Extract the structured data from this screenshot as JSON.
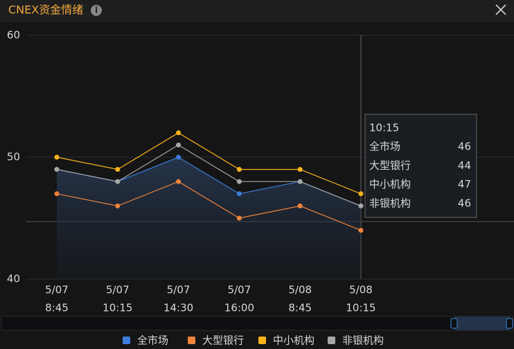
{
  "chart_data": {
    "type": "line",
    "title": "CNEX资金情绪",
    "categories": [
      [
        "5/07",
        "8:45"
      ],
      [
        "5/07",
        "10:15"
      ],
      [
        "5/07",
        "14:30"
      ],
      [
        "5/07",
        "16:00"
      ],
      [
        "5/08",
        "8:45"
      ],
      [
        "5/08",
        "10:15"
      ]
    ],
    "series": [
      {
        "name": "全市场",
        "color": "#3b7ddd",
        "values": [
          49,
          48,
          50,
          47,
          48,
          46
        ],
        "area": true
      },
      {
        "name": "大型银行",
        "color": "#f0843c",
        "values": [
          47,
          46,
          48,
          45,
          46,
          44
        ]
      },
      {
        "name": "中小机构",
        "color": "#fbb31a",
        "values": [
          50,
          49,
          52,
          49,
          49,
          47
        ]
      },
      {
        "name": "非银机构",
        "color": "#a8a8a8",
        "values": [
          49,
          48,
          51,
          48,
          48,
          46
        ]
      }
    ],
    "ylim": [
      40,
      60
    ],
    "yticks": [
      40,
      50,
      60
    ],
    "grid": true,
    "tooltip_index": 5
  }
}
